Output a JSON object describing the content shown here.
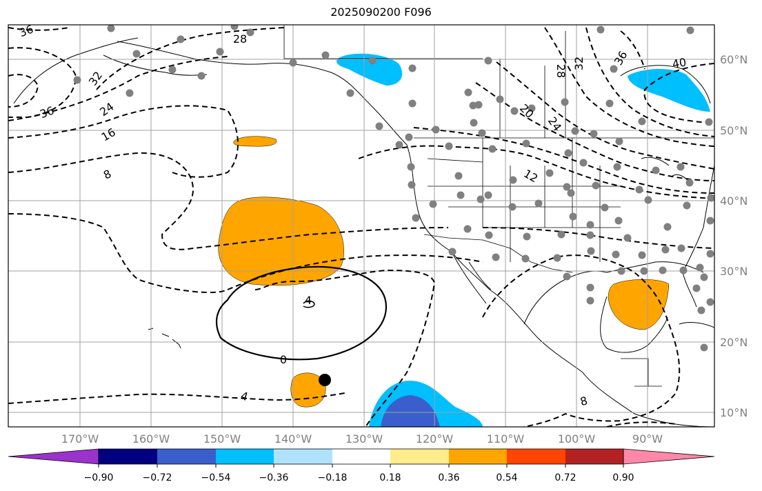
{
  "title": "2025090200 F096",
  "latitude_labels": [
    "60°N",
    "50°N",
    "40°N",
    "30°N",
    "20°N",
    "10°N"
  ],
  "longitude_labels": [
    "170°W",
    "160°W",
    "150°W",
    "140°W",
    "130°W",
    "120°W",
    "110°W",
    "100°W",
    "90°W"
  ],
  "contour_labels": [
    "36",
    "32",
    "28",
    "24",
    "16",
    "8",
    "36",
    "28",
    "32",
    "36",
    "40",
    "20",
    "24",
    "12",
    "4",
    "0",
    "4",
    "8"
  ],
  "colorbar": {
    "tick_labels": [
      "−0.90",
      "−0.72",
      "−0.54",
      "−0.36",
      "−0.18",
      "0.18",
      "0.36",
      "0.54",
      "0.72",
      "0.90"
    ],
    "colors": {
      "under": "#9933cc",
      "bins": [
        "#000080",
        "#3a5fcd",
        "#00bfff",
        "#b0e2ff",
        "#ffffff",
        "#ffec8b",
        "#ffa500",
        "#ff4500",
        "#b22222"
      ],
      "over": "#ff88aa"
    }
  },
  "colors": {
    "positive_fill": "#ffa500",
    "negative_light": "#00bfff",
    "negative_dark": "#3a5fcd",
    "station_dot": "#808080",
    "grid": "#a0a0a0"
  }
}
